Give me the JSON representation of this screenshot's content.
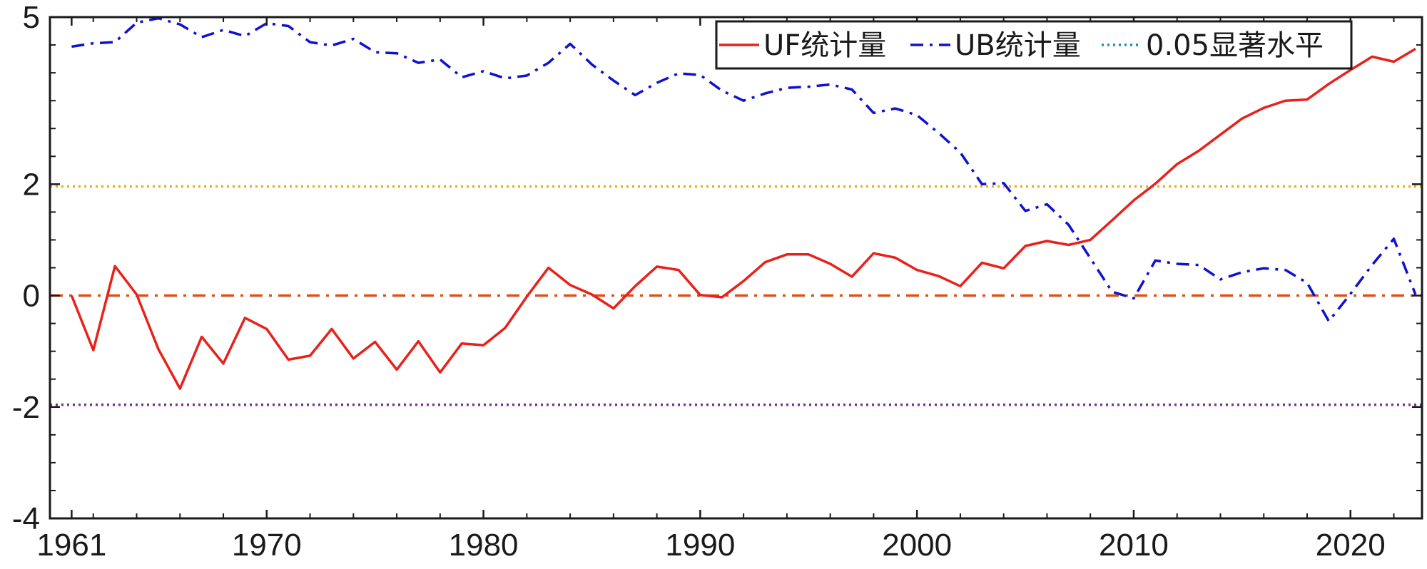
{
  "chart_data": {
    "type": "line",
    "title": "",
    "xlabel": "",
    "ylabel": "",
    "xlim": [
      1960,
      2023.3
    ],
    "ylim": [
      -4,
      5
    ],
    "x_ticks": [
      1961,
      1970,
      1980,
      1990,
      2000,
      2010,
      2020
    ],
    "y_ticks": [
      -4,
      -2,
      0,
      2,
      5
    ],
    "y_tick_labels": [
      "-4",
      "-2",
      "0",
      "2",
      "5"
    ],
    "grid": false,
    "legend_position": "top-right",
    "years": [
      1961,
      1962,
      1963,
      1964,
      1965,
      1966,
      1967,
      1968,
      1969,
      1970,
      1971,
      1972,
      1973,
      1974,
      1975,
      1976,
      1977,
      1978,
      1979,
      1980,
      1981,
      1982,
      1983,
      1984,
      1985,
      1986,
      1987,
      1988,
      1989,
      1990,
      1991,
      1992,
      1993,
      1994,
      1995,
      1996,
      1997,
      1998,
      1999,
      2000,
      2001,
      2002,
      2003,
      2004,
      2005,
      2006,
      2007,
      2008,
      2009,
      2010,
      2011,
      2012,
      2013,
      2014,
      2015,
      2016,
      2017,
      2018,
      2019,
      2020,
      2021,
      2022,
      2023
    ],
    "series": [
      {
        "name": "UF统计量",
        "color": "#e8211b",
        "style": "solid",
        "values": [
          0,
          -0.98,
          0.53,
          0.02,
          -0.96,
          -1.67,
          -0.74,
          -1.22,
          -0.4,
          -0.6,
          -1.15,
          -1.08,
          -0.6,
          -1.13,
          -0.83,
          -1.33,
          -0.82,
          -1.38,
          -0.86,
          -0.89,
          -0.58,
          -0.02,
          0.5,
          0.19,
          0.02,
          -0.23,
          0.17,
          0.52,
          0.46,
          0.01,
          -0.03,
          0.26,
          0.6,
          0.74,
          0.74,
          0.57,
          0.34,
          0.76,
          0.68,
          0.46,
          0.35,
          0.17,
          0.59,
          0.49,
          0.89,
          0.98,
          0.91,
          1.0,
          1.35,
          1.71,
          2.01,
          2.36,
          2.6,
          2.89,
          3.18,
          3.37,
          3.5,
          3.52,
          3.8,
          4.05,
          4.29,
          4.2,
          4.43
        ]
      },
      {
        "name": "UB统计量",
        "color": "#1010d0",
        "style": "dashdot",
        "values": [
          4.47,
          4.53,
          4.55,
          4.9,
          4.98,
          4.87,
          4.64,
          4.77,
          4.66,
          4.89,
          4.84,
          4.55,
          4.49,
          4.61,
          4.37,
          4.35,
          4.18,
          4.24,
          3.92,
          4.03,
          3.9,
          3.95,
          4.18,
          4.52,
          4.15,
          3.86,
          3.6,
          3.82,
          3.99,
          3.96,
          3.68,
          3.5,
          3.63,
          3.73,
          3.75,
          3.79,
          3.7,
          3.28,
          3.36,
          3.24,
          2.92,
          2.57,
          2.0,
          2.02,
          1.52,
          1.64,
          1.27,
          0.67,
          0.07,
          -0.05,
          0.63,
          0.57,
          0.55,
          0.29,
          0.42,
          0.49,
          0.46,
          0.23,
          -0.46,
          0.03,
          0.55,
          1.02,
          0.02
        ]
      }
    ],
    "reference_lines": [
      {
        "y": 1.96,
        "color": "#e6b020",
        "style": "dotted"
      },
      {
        "y": 0,
        "color": "#d95319",
        "style": "dashdot"
      },
      {
        "y": -1.96,
        "color": "#7e2f8e",
        "style": "dotted"
      }
    ],
    "legend": [
      {
        "label": "UF统计量",
        "color": "#e8211b",
        "style": "solid"
      },
      {
        "label": "UB统计量",
        "color": "#1010d0",
        "style": "dashdot"
      },
      {
        "label": "0.05显著水平",
        "color": "#1a8fb0",
        "style": "dotted"
      }
    ]
  }
}
